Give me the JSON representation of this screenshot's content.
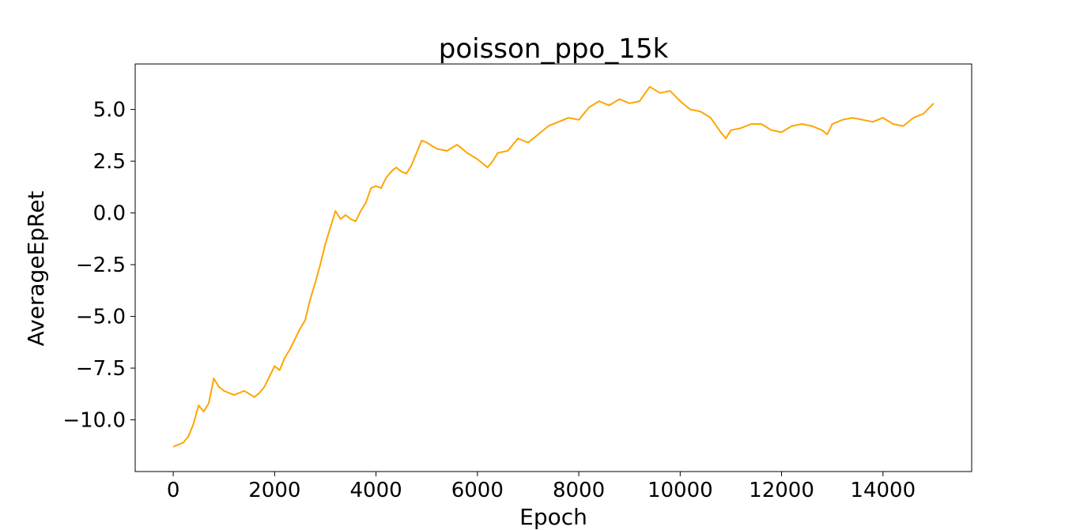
{
  "chart_data": {
    "type": "line",
    "title": "poisson_ppo_15k",
    "xlabel": "Epoch",
    "ylabel": "AverageEpRet",
    "xlim": [
      -750,
      15750
    ],
    "ylim": [
      -12.5,
      7.2
    ],
    "x_ticks": [
      0,
      2000,
      4000,
      6000,
      8000,
      10000,
      12000,
      14000
    ],
    "x_tick_labels": [
      "0",
      "2000",
      "4000",
      "6000",
      "8000",
      "10000",
      "12000",
      "14000"
    ],
    "y_ticks": [
      -10.0,
      -7.5,
      -5.0,
      -2.5,
      0.0,
      2.5,
      5.0
    ],
    "y_tick_labels": [
      "−10.0",
      "−7.5",
      "−5.0",
      "−2.5",
      "0.0",
      "2.5",
      "5.0"
    ],
    "grid": false,
    "legend": "none",
    "series": [
      {
        "color": "#FFA500",
        "x": [
          0,
          100,
          200,
          300,
          400,
          500,
          600,
          700,
          800,
          900,
          1000,
          1200,
          1400,
          1600,
          1700,
          1800,
          1900,
          2000,
          2100,
          2200,
          2300,
          2400,
          2500,
          2600,
          2700,
          2800,
          2900,
          3000,
          3100,
          3200,
          3300,
          3400,
          3500,
          3600,
          3700,
          3800,
          3900,
          4000,
          4100,
          4200,
          4300,
          4400,
          4500,
          4600,
          4700,
          4800,
          4900,
          5000,
          5200,
          5400,
          5600,
          5800,
          6000,
          6200,
          6300,
          6400,
          6600,
          6800,
          7000,
          7200,
          7400,
          7600,
          7800,
          8000,
          8200,
          8400,
          8600,
          8800,
          9000,
          9200,
          9400,
          9600,
          9800,
          10000,
          10200,
          10400,
          10600,
          10800,
          10900,
          11000,
          11200,
          11400,
          11600,
          11800,
          12000,
          12200,
          12400,
          12600,
          12800,
          12900,
          13000,
          13200,
          13400,
          13600,
          13800,
          14000,
          14200,
          14400,
          14600,
          14800,
          15000
        ],
        "y": [
          -11.3,
          -11.2,
          -11.1,
          -10.8,
          -10.2,
          -9.3,
          -9.6,
          -9.2,
          -8.0,
          -8.4,
          -8.6,
          -8.8,
          -8.6,
          -8.9,
          -8.7,
          -8.4,
          -7.9,
          -7.4,
          -7.6,
          -7.0,
          -6.6,
          -6.1,
          -5.6,
          -5.2,
          -4.2,
          -3.4,
          -2.5,
          -1.5,
          -0.7,
          0.1,
          -0.3,
          -0.1,
          -0.3,
          -0.4,
          0.1,
          0.5,
          1.2,
          1.3,
          1.2,
          1.7,
          2.0,
          2.2,
          2.0,
          1.9,
          2.3,
          2.9,
          3.5,
          3.4,
          3.1,
          3.0,
          3.3,
          2.9,
          2.6,
          2.2,
          2.5,
          2.9,
          3.0,
          3.6,
          3.4,
          3.8,
          4.2,
          4.4,
          4.6,
          4.5,
          5.1,
          5.4,
          5.2,
          5.5,
          5.3,
          5.4,
          6.1,
          5.8,
          5.9,
          5.4,
          5.0,
          4.9,
          4.6,
          3.9,
          3.6,
          4.0,
          4.1,
          4.3,
          4.3,
          4.0,
          3.9,
          4.2,
          4.3,
          4.2,
          4.0,
          3.8,
          4.3,
          4.5,
          4.6,
          4.5,
          4.4,
          4.6,
          4.3,
          4.2,
          4.6,
          4.8,
          5.3
        ]
      }
    ]
  }
}
